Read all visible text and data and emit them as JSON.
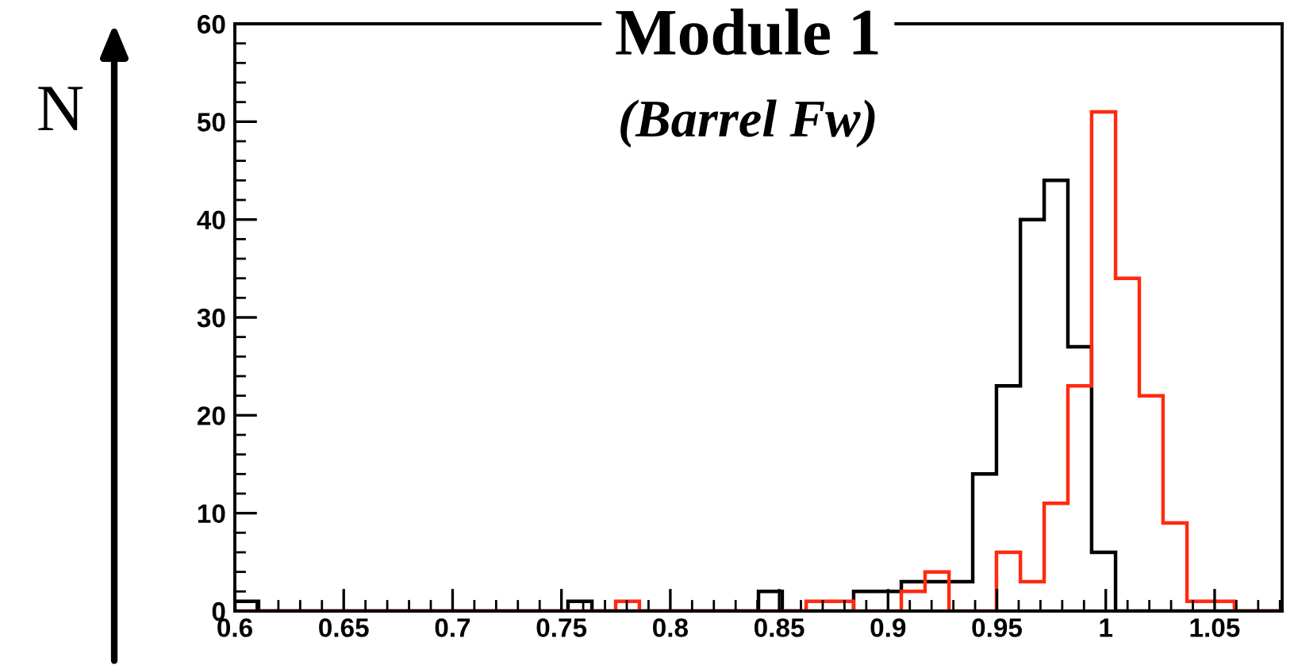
{
  "chart_data": {
    "type": "histogram",
    "title": "Module 1",
    "subtitle": "(Barrel Fw)",
    "ylabel": "N",
    "bins": [
      0.6,
      0.6109,
      0.6219,
      0.6328,
      0.6437,
      0.6547,
      0.6656,
      0.6765,
      0.6875,
      0.6984,
      0.7093,
      0.7203,
      0.7312,
      0.7421,
      0.753,
      0.764,
      0.7749,
      0.7858,
      0.7968,
      0.8077,
      0.8186,
      0.8296,
      0.8405,
      0.8514,
      0.8624,
      0.8733,
      0.8842,
      0.8952,
      0.9061,
      0.917,
      0.928,
      0.9389,
      0.9498,
      0.9608,
      0.9717,
      0.9826,
      0.9935,
      1.0045,
      1.0154,
      1.0263,
      1.0373,
      1.0482,
      1.0591,
      1.0701,
      1.081
    ],
    "series": [
      {
        "color": "#000000",
        "values": [
          1,
          0,
          0,
          0,
          0,
          0,
          0,
          0,
          0,
          0,
          0,
          0,
          0,
          0,
          1,
          0,
          0,
          0,
          0,
          0,
          0,
          0,
          2,
          0,
          0,
          0,
          2,
          2,
          3,
          3,
          3,
          14,
          23,
          40,
          44,
          27,
          6,
          0,
          0,
          0,
          0,
          0,
          0,
          0
        ]
      },
      {
        "color": "#ff2a10",
        "values": [
          0,
          0,
          0,
          0,
          0,
          0,
          0,
          0,
          0,
          0,
          0,
          0,
          0,
          0,
          0,
          0,
          1,
          0,
          0,
          0,
          0,
          0,
          0,
          0,
          1,
          1,
          0,
          0,
          2,
          4,
          0,
          0,
          6,
          3,
          11,
          23,
          51,
          34,
          22,
          9,
          1,
          1,
          0,
          0
        ]
      }
    ],
    "xlim": [
      0.6,
      1.081
    ],
    "ylim": [
      0,
      60
    ],
    "xticks": [
      0.6,
      0.65,
      0.7,
      0.75,
      0.8,
      0.85,
      0.9,
      0.95,
      1,
      1.05
    ],
    "yticks": [
      0,
      10,
      20,
      30,
      40,
      50,
      60
    ],
    "grid": false,
    "legend": false
  }
}
